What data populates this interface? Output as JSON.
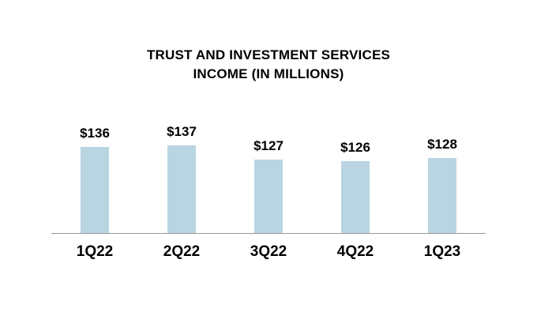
{
  "chart_data": {
    "type": "bar",
    "title": "TRUST AND INVESTMENT SERVICES INCOME (IN MILLIONS)",
    "title_lines": [
      "TRUST AND INVESTMENT SERVICES",
      "INCOME (IN MILLIONS)"
    ],
    "categories": [
      "1Q22",
      "2Q22",
      "3Q22",
      "4Q22",
      "1Q23"
    ],
    "values": [
      136,
      137,
      127,
      126,
      128
    ],
    "value_labels": [
      "$136",
      "$137",
      "$127",
      "$126",
      "$128"
    ],
    "xlabel": "",
    "ylabel": "",
    "ylim": [
      75,
      140
    ],
    "grid": false,
    "legend": "none",
    "bar_color": "#b9d5e2",
    "axis_line_color": "#999999",
    "text_color": "#000000"
  }
}
